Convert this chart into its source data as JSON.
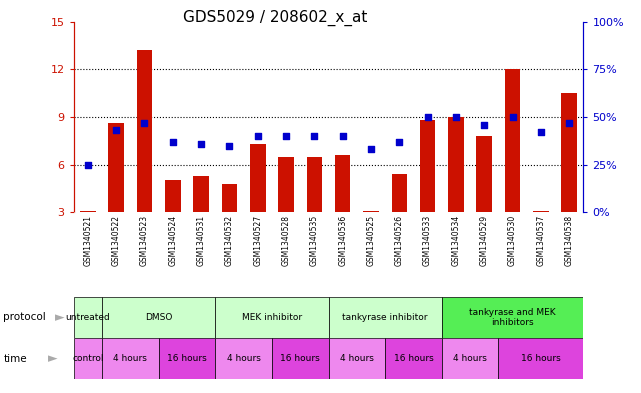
{
  "title": "GDS5029 / 208602_x_at",
  "samples": [
    "GSM1340521",
    "GSM1340522",
    "GSM1340523",
    "GSM1340524",
    "GSM1340531",
    "GSM1340532",
    "GSM1340527",
    "GSM1340528",
    "GSM1340535",
    "GSM1340536",
    "GSM1340525",
    "GSM1340526",
    "GSM1340533",
    "GSM1340534",
    "GSM1340529",
    "GSM1340530",
    "GSM1340537",
    "GSM1340538"
  ],
  "red_bar_values": [
    3.1,
    8.6,
    13.2,
    5.0,
    5.3,
    4.8,
    7.3,
    6.5,
    6.5,
    6.6,
    3.1,
    5.4,
    8.8,
    9.0,
    7.8,
    12.0,
    3.1,
    10.5
  ],
  "blue_dot_values": [
    25,
    43,
    47,
    37,
    36,
    35,
    40,
    40,
    40,
    40,
    33,
    37,
    50,
    50,
    46,
    50,
    42,
    47
  ],
  "ylim_left": [
    3,
    15
  ],
  "ylim_right": [
    0,
    100
  ],
  "yticks_left": [
    3,
    6,
    9,
    12,
    15
  ],
  "yticks_right": [
    0,
    25,
    50,
    75,
    100
  ],
  "bar_color": "#CC1100",
  "dot_color": "#0000CC",
  "protocols": [
    {
      "label": "untreated",
      "start": 0,
      "end": 1,
      "color": "#ccffcc"
    },
    {
      "label": "DMSO",
      "start": 1,
      "end": 5,
      "color": "#ccffcc"
    },
    {
      "label": "MEK inhibitor",
      "start": 5,
      "end": 9,
      "color": "#ccffcc"
    },
    {
      "label": "tankyrase inhibitor",
      "start": 9,
      "end": 13,
      "color": "#ccffcc"
    },
    {
      "label": "tankyrase and MEK\ninhibitors",
      "start": 13,
      "end": 18,
      "color": "#55ee55"
    }
  ],
  "times": [
    {
      "label": "control",
      "start": 0,
      "end": 1,
      "color": "#ee88ee"
    },
    {
      "label": "4 hours",
      "start": 1,
      "end": 3,
      "color": "#ee88ee"
    },
    {
      "label": "16 hours",
      "start": 3,
      "end": 5,
      "color": "#dd44dd"
    },
    {
      "label": "4 hours",
      "start": 5,
      "end": 7,
      "color": "#ee88ee"
    },
    {
      "label": "16 hours",
      "start": 7,
      "end": 9,
      "color": "#dd44dd"
    },
    {
      "label": "4 hours",
      "start": 9,
      "end": 11,
      "color": "#ee88ee"
    },
    {
      "label": "16 hours",
      "start": 11,
      "end": 13,
      "color": "#dd44dd"
    },
    {
      "label": "4 hours",
      "start": 13,
      "end": 15,
      "color": "#ee88ee"
    },
    {
      "label": "16 hours",
      "start": 15,
      "end": 18,
      "color": "#dd44dd"
    }
  ],
  "left_axis_color": "#CC1100",
  "right_axis_color": "#0000CC",
  "sample_bg": "#c8c8c8",
  "grid_color": "#000000"
}
